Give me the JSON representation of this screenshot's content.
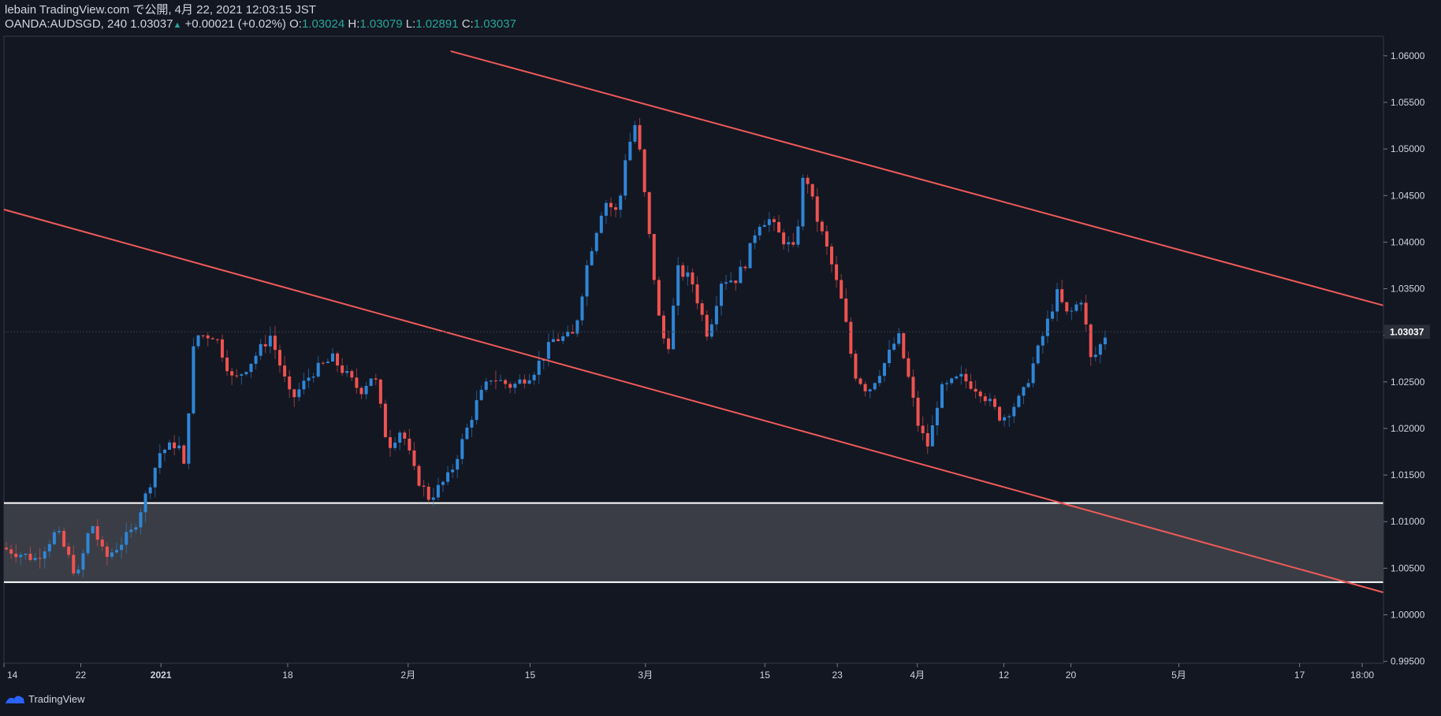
{
  "header": {
    "title": "lebain TradingView.com で公開, 4月 22, 2021 12:03:15 JST",
    "symbol_line": "OANDA:AUDSGD, 240 1.03037",
    "change": "+0.00021 (+0.02%)",
    "o_label": "O:",
    "o_value": "1.03024",
    "h_label": "H:",
    "h_value": "1.03079",
    "l_label": "L:",
    "l_value": "1.02891",
    "c_label": "C:",
    "c_value": "1.03037"
  },
  "footer": {
    "brand": "TradingView"
  },
  "colors": {
    "background": "#131722",
    "up": "#2f86d6",
    "down": "#ef5350",
    "trendline": "#f05a5a",
    "zone_fill": "#3a3d45",
    "zone_line": "#ffffff"
  },
  "chart_data": {
    "type": "candlestick",
    "symbol": "OANDA:AUDSGD",
    "interval": "240",
    "last_price": 1.03037,
    "last_price_label": "1.03037",
    "ylim": [
      0.9948,
      1.0621
    ],
    "y_ticks": [
      "1.06000",
      "1.05500",
      "1.05000",
      "1.04500",
      "1.04000",
      "1.03500",
      "1.03000",
      "1.02500",
      "1.02000",
      "1.01500",
      "1.01000",
      "1.00500",
      "1.00000",
      "0.99500"
    ],
    "y_tick_values": [
      1.06,
      1.055,
      1.05,
      1.045,
      1.04,
      1.035,
      1.03,
      1.025,
      1.02,
      1.015,
      1.01,
      1.005,
      1.0,
      0.995
    ],
    "x_ticks": [
      "14",
      "22",
      "2021",
      "18",
      "2月",
      "15",
      "3月",
      "15",
      "23",
      "4月",
      "12",
      "20",
      "5月",
      "17",
      "18:00"
    ],
    "x_tick_positions": [
      0.0,
      0.0557,
      0.1138,
      0.2057,
      0.293,
      0.3814,
      0.465,
      0.5516,
      0.6041,
      0.6621,
      0.7248,
      0.7734,
      0.8517,
      0.9392,
      0.9846
    ],
    "price_path": [
      [
        0.0,
        1.0072
      ],
      [
        0.025,
        1.006
      ],
      [
        0.04,
        1.009
      ],
      [
        0.055,
        1.004
      ],
      [
        0.065,
        1.01
      ],
      [
        0.075,
        1.006
      ],
      [
        0.095,
        1.009
      ],
      [
        0.105,
        1.013
      ],
      [
        0.115,
        1.0175
      ],
      [
        0.128,
        1.0185
      ],
      [
        0.132,
        1.0155
      ],
      [
        0.14,
        1.03
      ],
      [
        0.155,
        1.03
      ],
      [
        0.168,
        1.025
      ],
      [
        0.18,
        1.027
      ],
      [
        0.195,
        1.03
      ],
      [
        0.21,
        1.023
      ],
      [
        0.225,
        1.026
      ],
      [
        0.24,
        1.0275
      ],
      [
        0.26,
        1.024
      ],
      [
        0.27,
        1.026
      ],
      [
        0.28,
        1.018
      ],
      [
        0.29,
        1.02
      ],
      [
        0.3,
        1.015
      ],
      [
        0.31,
        1.0125
      ],
      [
        0.325,
        1.015
      ],
      [
        0.335,
        1.019
      ],
      [
        0.345,
        1.023
      ],
      [
        0.355,
        1.0255
      ],
      [
        0.37,
        1.0245
      ],
      [
        0.385,
        1.026
      ],
      [
        0.4,
        1.0295
      ],
      [
        0.415,
        1.03
      ],
      [
        0.425,
        1.038
      ],
      [
        0.437,
        1.0445
      ],
      [
        0.447,
        1.043
      ],
      [
        0.452,
        1.049
      ],
      [
        0.46,
        1.053
      ],
      [
        0.47,
        1.04
      ],
      [
        0.478,
        1.03
      ],
      [
        0.484,
        1.029
      ],
      [
        0.49,
        1.037
      ],
      [
        0.5,
        1.036
      ],
      [
        0.512,
        1.03
      ],
      [
        0.522,
        1.036
      ],
      [
        0.532,
        1.036
      ],
      [
        0.54,
        1.038
      ],
      [
        0.548,
        1.042
      ],
      [
        0.556,
        1.0425
      ],
      [
        0.565,
        1.0405
      ],
      [
        0.575,
        1.039
      ],
      [
        0.582,
        1.048
      ],
      [
        0.59,
        1.043
      ],
      [
        0.6,
        1.0385
      ],
      [
        0.61,
        1.033
      ],
      [
        0.618,
        1.026
      ],
      [
        0.628,
        1.024
      ],
      [
        0.64,
        1.027
      ],
      [
        0.65,
        1.03
      ],
      [
        0.658,
        1.025
      ],
      [
        0.665,
        1.02
      ],
      [
        0.672,
        1.018
      ],
      [
        0.68,
        1.024
      ],
      [
        0.695,
        1.0255
      ],
      [
        0.71,
        1.024
      ],
      [
        0.725,
        1.021
      ],
      [
        0.74,
        1.0235
      ],
      [
        0.755,
        1.03
      ],
      [
        0.765,
        1.0345
      ],
      [
        0.773,
        1.032
      ],
      [
        0.783,
        1.034
      ],
      [
        0.79,
        1.027
      ],
      [
        0.8,
        1.03
      ]
    ],
    "trendlines": [
      {
        "x1": 0.0,
        "y1": 1.0435,
        "x2": 1.0,
        "y2": 1.0024
      },
      {
        "x1": 0.3238,
        "y1": 1.0605,
        "x2": 1.0,
        "y2": 1.0332
      }
    ],
    "zone": {
      "top": 1.012,
      "bottom": 1.0035
    }
  }
}
